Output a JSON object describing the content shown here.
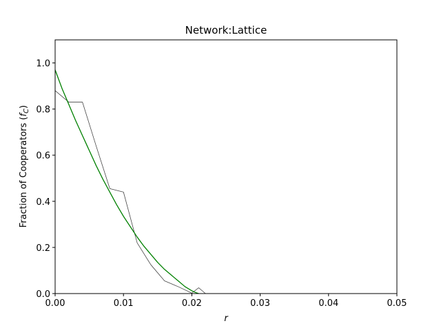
{
  "chart_data": {
    "type": "line",
    "title": "Network:Lattice",
    "xlabel": "r",
    "ylabel_text": "Fraction of Cooperators (",
    "ylabel_var": "f",
    "ylabel_sub": "C",
    "ylabel_close": ")",
    "xlim": [
      0,
      0.05
    ],
    "ylim": [
      0,
      1.1
    ],
    "xticks": [
      0,
      0.01,
      0.02,
      0.03,
      0.04,
      0.05
    ],
    "xtick_labels": [
      "0.00",
      "0.01",
      "0.02",
      "0.03",
      "0.04",
      "0.05"
    ],
    "yticks": [
      0,
      0.2,
      0.4,
      0.6,
      0.8,
      1.0
    ],
    "ytick_labels": [
      "0.0",
      "0.2",
      "0.4",
      "0.6",
      "0.8",
      "1.0"
    ],
    "grid": false,
    "series": [
      {
        "color": "#444444",
        "x": [
          0.0,
          0.002,
          0.004,
          0.006,
          0.008,
          0.01,
          0.012,
          0.014,
          0.016,
          0.018,
          0.02,
          0.021,
          0.022,
          0.024,
          0.026,
          0.028,
          0.03,
          0.032,
          0.034,
          0.036,
          0.038,
          0.04,
          0.042,
          0.044,
          0.046,
          0.048,
          0.05
        ],
        "y": [
          0.88,
          0.83,
          0.83,
          0.64,
          0.455,
          0.44,
          0.22,
          0.125,
          0.055,
          0.03,
          0.002,
          0.025,
          0.0,
          0.0,
          0.0,
          0.0,
          0.0,
          0.0,
          0.0,
          0.0,
          0.0,
          0.0,
          0.0,
          0.0,
          0.0,
          0.0,
          0.0
        ]
      },
      {
        "color": "#008000",
        "x": [
          0.0,
          0.001,
          0.002,
          0.003,
          0.004,
          0.005,
          0.006,
          0.007,
          0.008,
          0.009,
          0.01,
          0.011,
          0.012,
          0.013,
          0.014,
          0.015,
          0.016,
          0.017,
          0.018,
          0.019,
          0.02,
          0.0205,
          0.021
        ],
        "y": [
          0.97,
          0.89,
          0.82,
          0.75,
          0.685,
          0.62,
          0.555,
          0.495,
          0.44,
          0.385,
          0.335,
          0.29,
          0.245,
          0.205,
          0.17,
          0.135,
          0.105,
          0.08,
          0.055,
          0.03,
          0.012,
          0.005,
          0.0
        ]
      }
    ]
  }
}
